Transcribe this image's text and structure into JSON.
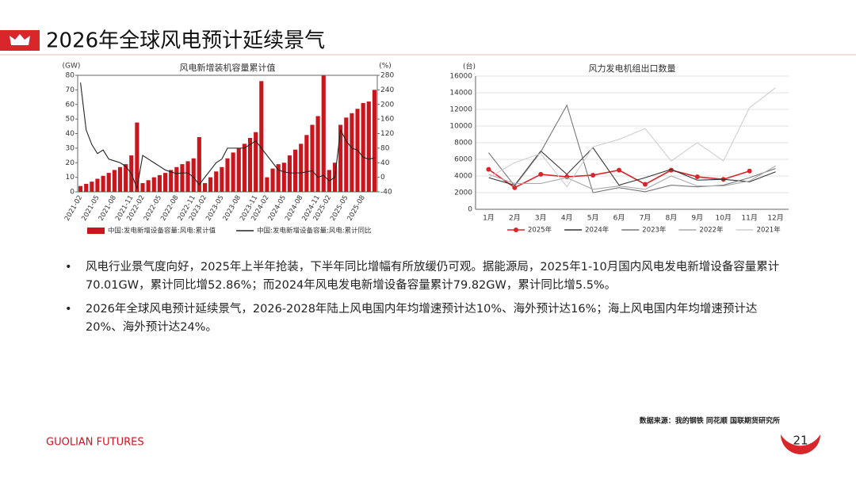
{
  "header": {
    "title": "2026年全球风电预计延续景气"
  },
  "chart_data": [
    {
      "type": "bar",
      "title": "风电新增装机容量累计值",
      "y_label": "(GW)",
      "y2_label": "(%)",
      "categories": [
        "2021-02",
        null,
        null,
        "2021-05",
        null,
        null,
        "2021-08",
        null,
        null,
        "2021-11",
        null,
        "2022-02",
        null,
        null,
        "2022-05",
        null,
        null,
        "2022-08",
        null,
        null,
        "2022-11",
        null,
        "2023-02",
        null,
        null,
        "2023-05",
        null,
        null,
        "2023-08",
        null,
        null,
        "2023-11",
        null,
        "2024-02",
        null,
        null,
        "2024-05",
        null,
        null,
        "2024-08",
        null,
        null,
        "2024-11",
        null,
        "2025-02",
        null,
        null,
        "2025-05",
        null,
        null,
        "2025-08",
        null,
        null
      ],
      "series": [
        {
          "name": "中国:发电新增设备容量:风电:累计值",
          "color": "#c8161d",
          "type": "bar",
          "values": [
            4,
            5.5,
            7,
            9,
            11,
            13,
            15,
            17,
            19,
            25,
            47.6,
            6,
            8,
            10,
            11.5,
            13,
            15,
            17,
            19,
            21,
            23,
            37.6,
            6,
            10,
            14,
            17,
            23,
            27,
            30,
            33,
            37,
            41,
            76,
            10,
            16,
            19,
            20,
            25,
            29,
            33,
            39,
            46,
            52,
            79.82,
            15,
            20,
            46,
            51,
            54,
            57,
            61,
            62,
            70.01
          ]
        },
        {
          "name": "中国:发电新增设备容量:风电:累计同比",
          "color": "#222222",
          "type": "line",
          "axis": "y2",
          "values": [
            260,
            130,
            90,
            65,
            75,
            50,
            45,
            40,
            30,
            10,
            -30,
            60,
            50,
            40,
            30,
            20,
            15,
            10,
            12,
            12,
            0,
            -20,
            0,
            20,
            40,
            50,
            80,
            80,
            80,
            80,
            90,
            100,
            80,
            60,
            40,
            20,
            15,
            12,
            12,
            12,
            15,
            18,
            0,
            5.5,
            -10,
            0,
            130,
            100,
            80,
            75,
            55,
            50,
            52.86
          ]
        }
      ],
      "ylim": [
        0,
        80
      ],
      "yticks": [
        0,
        10,
        20,
        30,
        40,
        50,
        60,
        70,
        80
      ],
      "y2lim": [
        -40,
        280
      ],
      "y2ticks": [
        -40,
        0,
        40,
        80,
        120,
        160,
        200,
        240,
        280
      ],
      "grid": false
    },
    {
      "type": "line",
      "title": "风力发电机组出口数量",
      "y_label": "(台)",
      "categories": [
        "1月",
        "2月",
        "3月",
        "4月",
        "5月",
        "6月",
        "7月",
        "8月",
        "9月",
        "10月",
        "11月",
        "12月"
      ],
      "series": [
        {
          "name": "2025年",
          "color": "#d9262b",
          "marker": true,
          "values": [
            4800,
            2600,
            4200,
            3900,
            4100,
            4700,
            3000,
            4700,
            3900,
            3600,
            4600,
            null
          ]
        },
        {
          "name": "2024年",
          "color": "#333333",
          "values": [
            3800,
            2900,
            7000,
            4200,
            7400,
            2900,
            3800,
            4800,
            3500,
            3600,
            3300,
            4500
          ]
        },
        {
          "name": "2023年",
          "color": "#777777",
          "values": [
            6800,
            2800,
            6900,
            12500,
            2000,
            2600,
            2100,
            2900,
            2700,
            2900,
            3800,
            4900
          ]
        },
        {
          "name": "2022年",
          "color": "#aaaaaa",
          "values": [
            4200,
            3100,
            3100,
            3800,
            2400,
            2800,
            2400,
            4000,
            2800,
            2800,
            3400,
            5200
          ]
        },
        {
          "name": "2021年",
          "color": "#cfcfcf",
          "values": [
            3800,
            5600,
            6700,
            2700,
            7500,
            8400,
            9700,
            5800,
            8000,
            5800,
            12200,
            14600
          ]
        }
      ],
      "ylim": [
        0,
        16000
      ],
      "yticks": [
        0,
        2000,
        4000,
        6000,
        8000,
        10000,
        12000,
        14000,
        16000
      ],
      "grid": true
    }
  ],
  "bullets": [
    "风电行业景气度向好，2025年上半年抢装，下半年同比增幅有所放缓仍可观。据能源局，2025年1-10月国内风电发电新增设备容量累计70.01GW，累计同比增52.86%；而2024年风电发电新增设备容量累计79.82GW，累计同比增5.5%。",
    "2026年全球风电预计延续景气，2026-2028年陆上风电国内年均增速预计达10%、海外预计达16%；海上风电国内年均增速预计达20%、海外预计达24%。"
  ],
  "bullet_symbol": "•",
  "source": "数据来源：我的钢铁  同花顺  国联期货研究所",
  "footer": {
    "brand": "GUOLIAN FUTURES",
    "page": "21"
  }
}
